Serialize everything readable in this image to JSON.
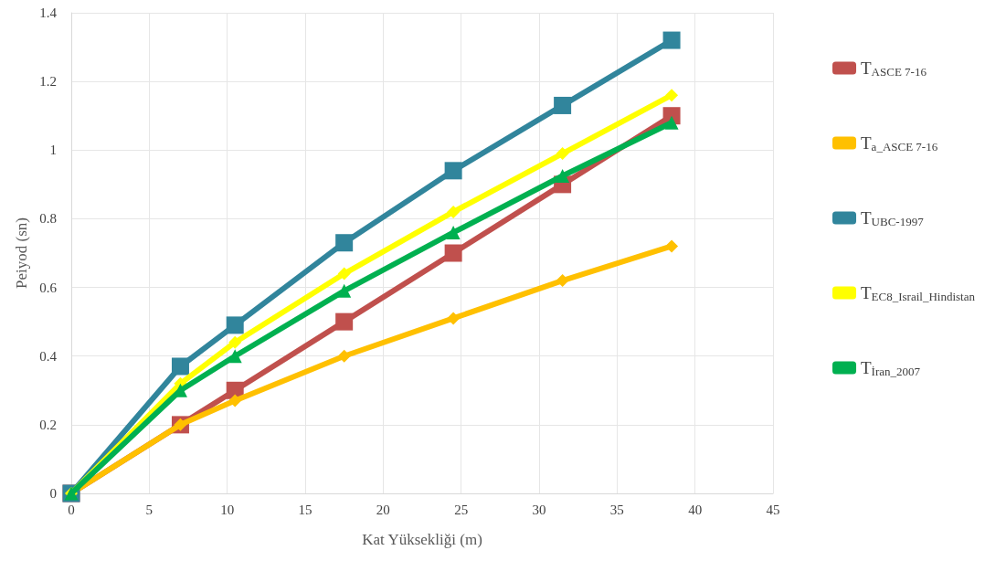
{
  "chart_data": {
    "type": "line",
    "xlabel": "Kat Yüksekliği (m)",
    "ylabel": "Peiyod (sn)",
    "x": [
      0,
      7,
      10.5,
      17.5,
      24.5,
      31.5,
      38.5
    ],
    "xlim": [
      0,
      45
    ],
    "xticks": [
      0,
      5,
      10,
      15,
      20,
      25,
      30,
      35,
      40,
      45
    ],
    "ylim": [
      0,
      1.4
    ],
    "yticks": [
      0,
      0.2,
      0.4,
      0.6,
      0.8,
      1,
      1.2,
      1.4
    ],
    "grid": true,
    "legend": "right",
    "line_style": "solid",
    "series": [
      {
        "name": "T$_{ASCE 7-16}$",
        "color": "#c0504d",
        "marker": "square",
        "values": [
          0,
          0.2,
          0.3,
          0.5,
          0.7,
          0.9,
          1.1
        ]
      },
      {
        "name": "T$_{a_ASCE 7-16}$",
        "color": "#ffc000",
        "marker": "diamond",
        "values": [
          0,
          0.2,
          0.27,
          0.4,
          0.51,
          0.62,
          0.72
        ]
      },
      {
        "name": "T$_{UBC-1997}$",
        "color": "#31859c",
        "marker": "square",
        "values": [
          0,
          0.37,
          0.49,
          0.73,
          0.94,
          1.13,
          1.32
        ]
      },
      {
        "name": "T$_{EC8_Israil_Hindistan}$",
        "color": "#ffff00",
        "marker": "diamond",
        "values": [
          0,
          0.32,
          0.44,
          0.64,
          0.82,
          0.99,
          1.16
        ]
      },
      {
        "name": "T$_{İran_2007}$",
        "color": "#00b050",
        "marker": "triangle",
        "values": [
          0,
          0.3,
          0.4,
          0.59,
          0.76,
          0.925,
          1.08
        ]
      }
    ]
  }
}
